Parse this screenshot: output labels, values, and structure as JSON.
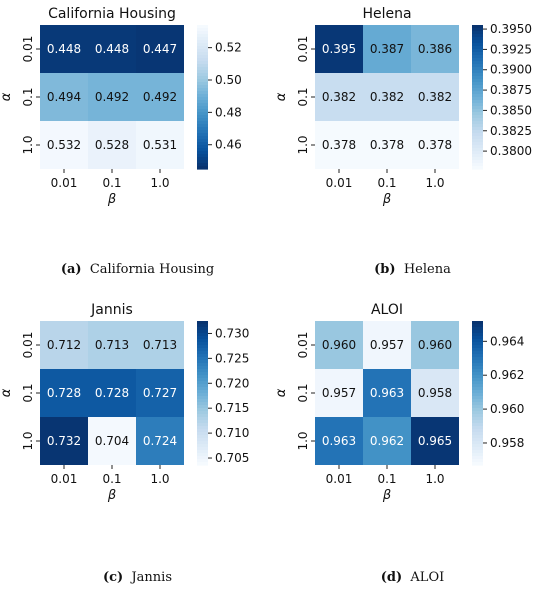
{
  "figure": {
    "panels": [
      {
        "caption_letter": "(a)",
        "caption_text": "California Housing"
      },
      {
        "caption_letter": "(b)",
        "caption_text": "Helena"
      },
      {
        "caption_letter": "(c)",
        "caption_text": "Jannis"
      },
      {
        "caption_letter": "(d)",
        "caption_text": "ALOI"
      }
    ]
  },
  "chart_data": [
    {
      "type": "heatmap",
      "title": "California Housing",
      "xlabel": "β",
      "ylabel": "α",
      "x_categories": [
        "0.01",
        "0.1",
        "1.0"
      ],
      "y_categories": [
        "0.01",
        "0.1",
        "1.0"
      ],
      "values": [
        [
          0.448,
          0.448,
          0.447
        ],
        [
          0.494,
          0.492,
          0.492
        ],
        [
          0.532,
          0.528,
          0.531
        ]
      ],
      "cell_labels": [
        [
          "0.448",
          "0.448",
          "0.447"
        ],
        [
          "0.494",
          "0.492",
          "0.492"
        ],
        [
          "0.532",
          "0.528",
          "0.531"
        ]
      ],
      "colormap": "Blues_r",
      "colorbar_range": [
        0.445,
        0.534
      ],
      "colorbar_ticks": [
        "0.52",
        "0.50",
        "0.48",
        "0.46"
      ],
      "colorbar_tick_values": [
        0.52,
        0.5,
        0.48,
        0.46
      ]
    },
    {
      "type": "heatmap",
      "title": "Helena",
      "xlabel": "β",
      "ylabel": "α",
      "x_categories": [
        "0.01",
        "0.1",
        "1.0"
      ],
      "y_categories": [
        "0.01",
        "0.1",
        "1.0"
      ],
      "values": [
        [
          0.395,
          0.387,
          0.386
        ],
        [
          0.382,
          0.382,
          0.382
        ],
        [
          0.378,
          0.378,
          0.378
        ]
      ],
      "cell_labels": [
        [
          "0.395",
          "0.387",
          "0.386"
        ],
        [
          "0.382",
          "0.382",
          "0.382"
        ],
        [
          "0.378",
          "0.378",
          "0.378"
        ]
      ],
      "colormap": "Blues",
      "colorbar_range": [
        0.3778,
        0.3955
      ],
      "colorbar_ticks": [
        "0.3950",
        "0.3925",
        "0.3900",
        "0.3875",
        "0.3850",
        "0.3825",
        "0.3800"
      ],
      "colorbar_tick_values": [
        0.395,
        0.3925,
        0.39,
        0.3875,
        0.385,
        0.3825,
        0.38
      ]
    },
    {
      "type": "heatmap",
      "title": "Jannis",
      "xlabel": "β",
      "ylabel": "α",
      "x_categories": [
        "0.01",
        "0.1",
        "1.0"
      ],
      "y_categories": [
        "0.01",
        "0.1",
        "1.0"
      ],
      "values": [
        [
          0.712,
          0.713,
          0.713
        ],
        [
          0.728,
          0.728,
          0.727
        ],
        [
          0.732,
          0.704,
          0.724
        ]
      ],
      "cell_labels": [
        [
          "0.712",
          "0.713",
          "0.713"
        ],
        [
          "0.728",
          "0.728",
          "0.727"
        ],
        [
          "0.732",
          "0.704",
          "0.724"
        ]
      ],
      "colormap": "Blues",
      "colorbar_range": [
        0.7036,
        0.7325
      ],
      "colorbar_ticks": [
        "0.730",
        "0.725",
        "0.720",
        "0.715",
        "0.710",
        "0.705"
      ],
      "colorbar_tick_values": [
        0.73,
        0.725,
        0.72,
        0.715,
        0.71,
        0.705
      ]
    },
    {
      "type": "heatmap",
      "title": "ALOI",
      "xlabel": "β",
      "ylabel": "α",
      "x_categories": [
        "0.01",
        "0.1",
        "1.0"
      ],
      "y_categories": [
        "0.01",
        "0.1",
        "1.0"
      ],
      "values": [
        [
          0.96,
          0.957,
          0.96
        ],
        [
          0.957,
          0.963,
          0.958
        ],
        [
          0.963,
          0.962,
          0.965
        ]
      ],
      "cell_labels": [
        [
          "0.960",
          "0.957",
          "0.960"
        ],
        [
          "0.957",
          "0.963",
          "0.958"
        ],
        [
          "0.963",
          "0.962",
          "0.965"
        ]
      ],
      "colormap": "Blues",
      "colorbar_range": [
        0.9567,
        0.9652
      ],
      "colorbar_ticks": [
        "0.964",
        "0.962",
        "0.960",
        "0.958"
      ],
      "colorbar_tick_values": [
        0.964,
        0.962,
        0.96,
        0.958
      ]
    }
  ]
}
